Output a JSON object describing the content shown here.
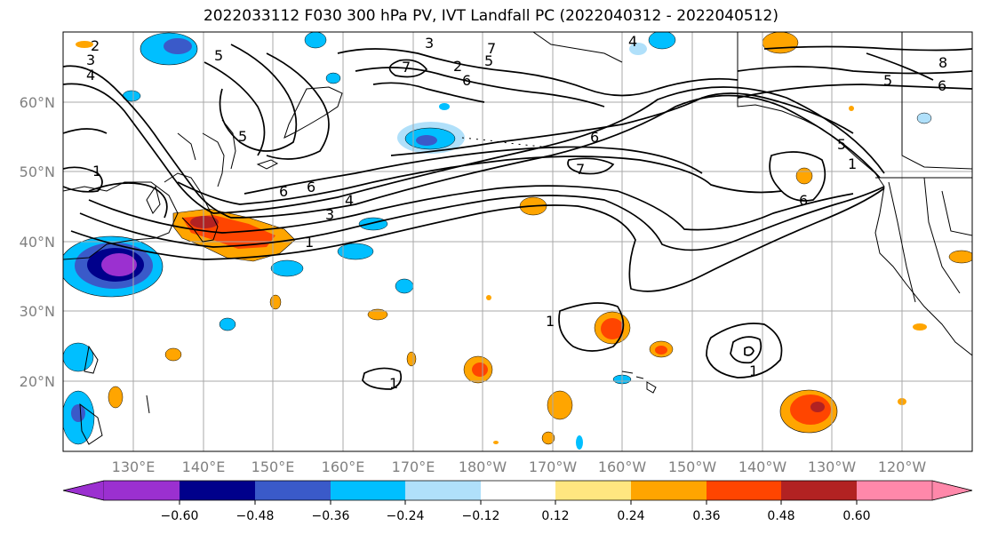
{
  "title": "2022033112 F030 300 hPa PV, IVT Landfall PC (2022040312 - 2022040512)",
  "map": {
    "lat_labels": [
      "60°N",
      "50°N",
      "40°N",
      "30°N",
      "20°N"
    ],
    "lon_labels": [
      "130°E",
      "140°E",
      "150°E",
      "160°E",
      "170°E",
      "180°W",
      "170°W",
      "160°W",
      "150°W",
      "140°W",
      "130°W",
      "120°W"
    ],
    "contour_labels": [
      "1",
      "2",
      "3",
      "4",
      "5",
      "6",
      "7",
      "1",
      "3",
      "4",
      "5",
      "6",
      "7",
      "6",
      "5",
      "6",
      "8",
      "5",
      "6",
      "7",
      "6",
      "4",
      "1",
      "1",
      "1",
      "1",
      "2",
      "3",
      "5",
      "7"
    ]
  },
  "colorbar": {
    "colors": [
      "#9b30d0",
      "#00008b",
      "#3a5ac9",
      "#00bfff",
      "#b0e0fa",
      "#ffffff",
      "#ffe680",
      "#ffa500",
      "#ff4500",
      "#b22222",
      "#ff88aa"
    ],
    "tick_labels": [
      "−0.60",
      "−0.48",
      "−0.36",
      "−0.24",
      "−0.12",
      "0.12",
      "0.24",
      "0.36",
      "0.48",
      "0.60"
    ]
  }
}
